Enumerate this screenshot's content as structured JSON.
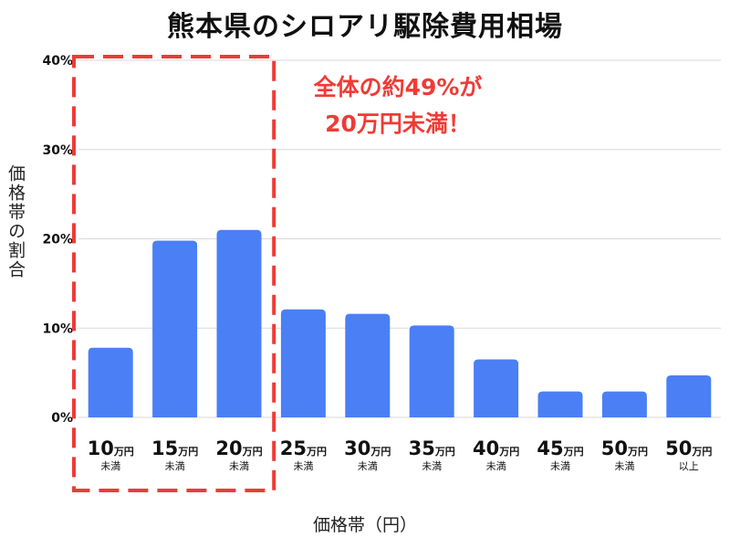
{
  "title": "熊本県のシロアリ駆除費用相場",
  "annotation": {
    "line1": "全体の約49%が",
    "line2": "20万円未満！"
  },
  "colors": {
    "bar": "#4a7ff5",
    "highlight": "#ef3b36",
    "grid": "#d9d9d9",
    "text": "#111111"
  },
  "chart_data": {
    "type": "bar",
    "title": "熊本県のシロアリ駆除費用相場",
    "xlabel": "価格帯（円）",
    "ylabel": "価格帯の割合",
    "ylim": [
      0,
      40
    ],
    "y_ticks": [
      "0%",
      "10%",
      "20%",
      "30%",
      "40%"
    ],
    "grid": true,
    "categories": [
      {
        "num": "10",
        "unit": "万円",
        "sub": "未満"
      },
      {
        "num": "15",
        "unit": "万円",
        "sub": "未満"
      },
      {
        "num": "20",
        "unit": "万円",
        "sub": "未満"
      },
      {
        "num": "25",
        "unit": "万円",
        "sub": "未満"
      },
      {
        "num": "30",
        "unit": "万円",
        "sub": "未満"
      },
      {
        "num": "35",
        "unit": "万円",
        "sub": "未満"
      },
      {
        "num": "40",
        "unit": "万円",
        "sub": "未満"
      },
      {
        "num": "45",
        "unit": "万円",
        "sub": "未満"
      },
      {
        "num": "50",
        "unit": "万円",
        "sub": "未満"
      },
      {
        "num": "50",
        "unit": "万円",
        "sub": "以上"
      }
    ],
    "values": [
      7.8,
      19.8,
      21.0,
      12.1,
      11.6,
      10.3,
      6.5,
      2.9,
      2.9,
      4.7
    ],
    "highlight_range": [
      0,
      2
    ]
  }
}
